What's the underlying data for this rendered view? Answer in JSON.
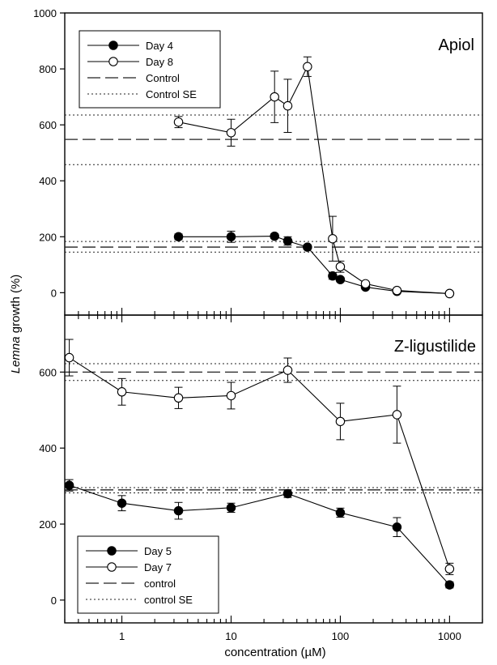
{
  "figure": {
    "ylabel_italic": "Lemna",
    "ylabel_rest": " growth (%)",
    "xlabel": "concentration (µM)"
  },
  "chart_data": [
    {
      "type": "line",
      "title": "Apiol",
      "x_scale": "log",
      "xlim": [
        0.3,
        2000
      ],
      "ylim": [
        -80,
        1000
      ],
      "yticks": [
        0,
        200,
        400,
        600,
        800,
        1000
      ],
      "series": [
        {
          "name": "Day 4",
          "marker": "filled",
          "x": [
            3.3,
            10,
            25,
            33,
            50,
            85,
            100,
            170,
            330,
            1000
          ],
          "y": [
            200,
            200,
            202,
            185,
            163,
            60,
            47,
            20,
            5,
            -3
          ],
          "err": [
            10,
            20,
            8,
            15,
            8,
            12,
            8,
            5,
            5,
            5
          ]
        },
        {
          "name": "Day 8",
          "marker": "open",
          "x": [
            3.3,
            10,
            25,
            33,
            50,
            85,
            100,
            170,
            330,
            1000
          ],
          "y": [
            610,
            572,
            700,
            668,
            808,
            193,
            93,
            32,
            8,
            -3
          ],
          "err": [
            20,
            48,
            92,
            95,
            35,
            80,
            20,
            5,
            5,
            5
          ]
        }
      ],
      "reference_lines": [
        {
          "name": "Control",
          "style": "dashed",
          "y": 548
        },
        {
          "name": "Control SE",
          "style": "dotted",
          "y": 635
        },
        {
          "style": "dotted",
          "y": 458
        },
        {
          "style": "dashed",
          "y": 163
        },
        {
          "style": "dotted",
          "y": 183
        },
        {
          "style": "dotted",
          "y": 145
        }
      ]
    },
    {
      "type": "line",
      "title": "Z-ligustilide",
      "x_scale": "log",
      "xlim": [
        0.3,
        2000
      ],
      "ylim": [
        -60,
        750
      ],
      "yticks": [
        0,
        200,
        400,
        600
      ],
      "xticks": [
        1,
        10,
        100,
        1000
      ],
      "xticklabels": [
        "1",
        "10",
        "100",
        "1000"
      ],
      "series": [
        {
          "name": "Day 5",
          "marker": "filled",
          "x": [
            0.33,
            1,
            3.3,
            10,
            33,
            100,
            330,
            1000
          ],
          "y": [
            302,
            255,
            235,
            243,
            280,
            230,
            192,
            40
          ],
          "err": [
            15,
            20,
            22,
            12,
            10,
            12,
            25,
            8
          ]
        },
        {
          "name": "Day 7",
          "marker": "open",
          "x": [
            0.33,
            1,
            3.3,
            10,
            33,
            100,
            330,
            1000
          ],
          "y": [
            638,
            548,
            532,
            538,
            605,
            470,
            488,
            82
          ],
          "err": [
            48,
            35,
            28,
            35,
            32,
            48,
            75,
            15
          ]
        }
      ],
      "reference_lines": [
        {
          "name": "control",
          "style": "dashed",
          "y": 600
        },
        {
          "name": "control SE",
          "style": "dotted",
          "y": 622
        },
        {
          "style": "dotted",
          "y": 578
        },
        {
          "style": "dashed",
          "y": 290
        },
        {
          "style": "dotted",
          "y": 296
        },
        {
          "style": "dotted",
          "y": 282
        }
      ]
    }
  ]
}
